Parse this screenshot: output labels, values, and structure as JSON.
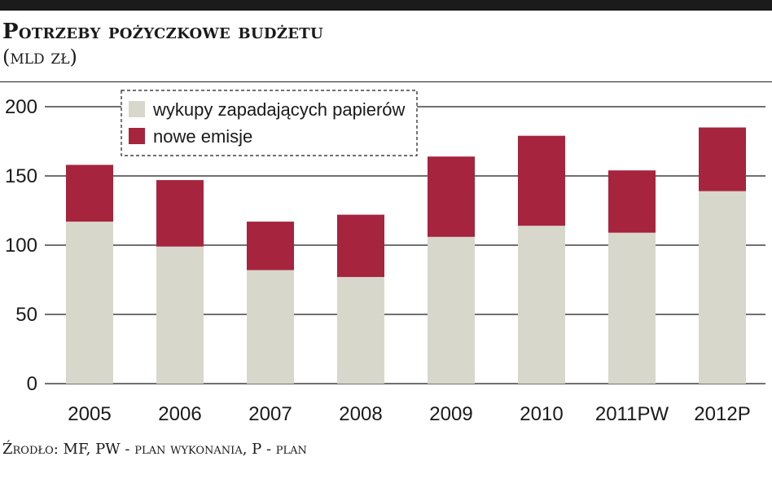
{
  "header": {
    "title": "Potrzeby pożyczkowe budżetu",
    "subtitle": "(mld zł)"
  },
  "footer": {
    "source": "Źrodło: MF, PW - plan wykonania, P - plan"
  },
  "colors": {
    "redemption": "#d8d7cc",
    "new_issues": "#a6243e",
    "grid": "#1a1a1a",
    "text": "#1a1a1a"
  },
  "chart_data": {
    "type": "bar",
    "stacked": true,
    "categories": [
      "2005",
      "2006",
      "2007",
      "2008",
      "2009",
      "2010",
      "2011PW",
      "2012P"
    ],
    "series": [
      {
        "name": "wykupy zapadających papierów",
        "values": [
          117,
          99,
          82,
          77,
          106,
          114,
          109,
          139
        ]
      },
      {
        "name": "nowe emisje",
        "values": [
          41,
          48,
          35,
          45,
          58,
          65,
          45,
          46
        ]
      }
    ],
    "ylim": [
      0,
      200
    ],
    "yticks": [
      0,
      50,
      100,
      150,
      200
    ],
    "grid": true,
    "legend_position": "top-left"
  }
}
